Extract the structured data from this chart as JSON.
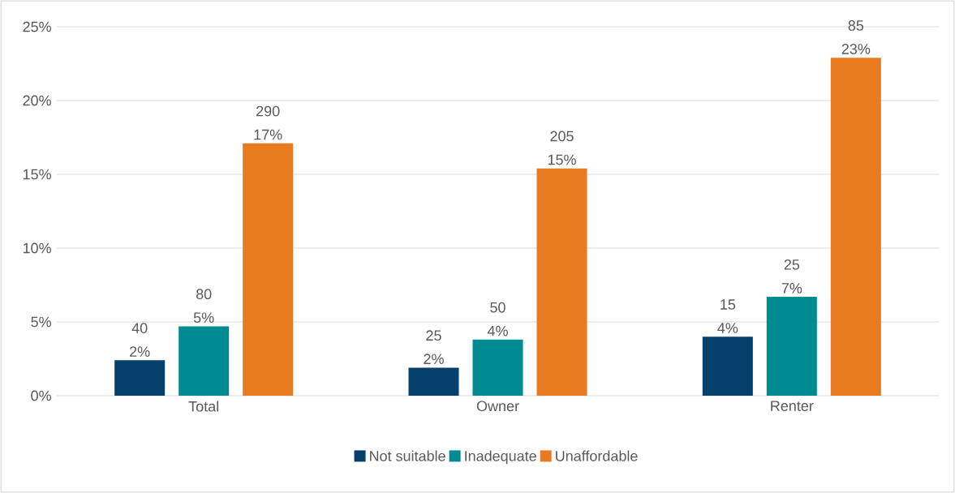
{
  "chart_data": {
    "type": "bar",
    "categories": [
      "Total",
      "Owner",
      "Renter"
    ],
    "series": [
      {
        "name": "Not suitable",
        "color": "#053f6b",
        "values": [
          2.4,
          1.9,
          4.0
        ],
        "value_labels": [
          "40 2%",
          "25 2%",
          "15 4%"
        ]
      },
      {
        "name": "Inadequate",
        "color": "#008a91",
        "values": [
          4.7,
          3.8,
          6.7
        ],
        "value_labels": [
          "80 5%",
          "50 4%",
          "25 7%"
        ]
      },
      {
        "name": "Unaffordable",
        "color": "#e87b20",
        "values": [
          17.1,
          15.4,
          22.9
        ],
        "value_labels": [
          "290 17%",
          "205 15%",
          "85 23%"
        ]
      }
    ],
    "ylim": [
      0,
      25
    ],
    "yticks": [
      {
        "value": 0,
        "label": "0%"
      },
      {
        "value": 5,
        "label": "5%"
      },
      {
        "value": 10,
        "label": "10%"
      },
      {
        "value": 15,
        "label": "15%"
      },
      {
        "value": 20,
        "label": "20%"
      },
      {
        "value": 25,
        "label": "25%"
      }
    ],
    "grid": "y",
    "legend": "bottom"
  }
}
